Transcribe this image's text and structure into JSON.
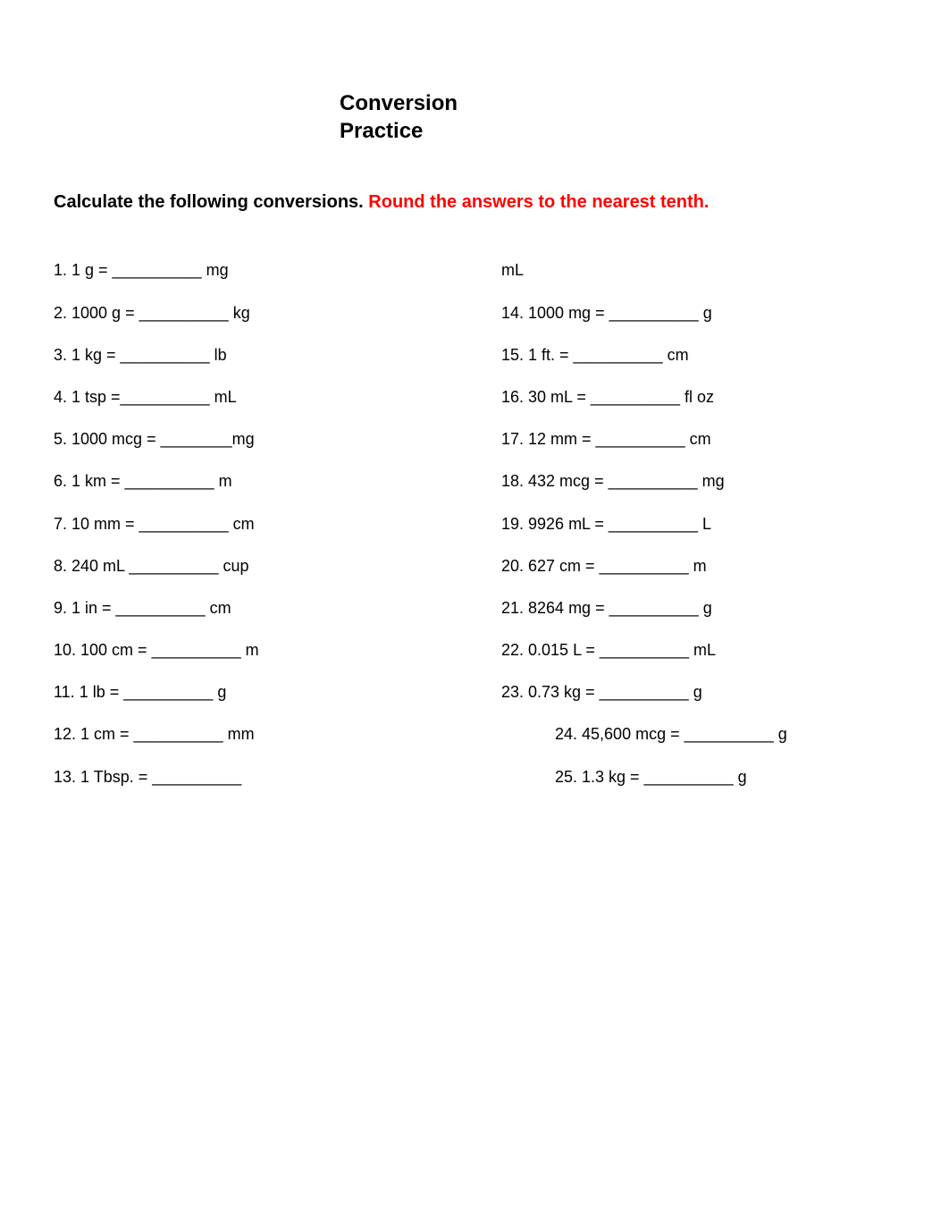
{
  "title": {
    "line1": "Conversion",
    "line2": "Practice"
  },
  "instructions": {
    "black": "Calculate the following conversions.",
    "red": "Round the answers to the nearest tenth."
  },
  "column1": [
    {
      "text": "1. 1 g = __________ mg"
    },
    {
      "text": "2. 1000 g = __________ kg"
    },
    {
      "text": "3. 1 kg = __________ lb"
    },
    {
      "text": "4. 1 tsp =__________ mL"
    },
    {
      "text": "5. 1000 mcg = ________mg"
    },
    {
      "text": "6. 1 km = __________ m"
    },
    {
      "text": "7. 10 mm = __________ cm"
    },
    {
      "text": "8. 240 mL __________ cup"
    },
    {
      "text": "9. 1 in = __________ cm"
    },
    {
      "text": "10. 100 cm = __________ m"
    },
    {
      "text": "11. 1 lb = __________ g"
    },
    {
      "text": "12. 1 cm = __________ mm"
    },
    {
      "text": "13. 1 Tbsp. = __________"
    }
  ],
  "column2": [
    {
      "text": "mL"
    },
    {
      "text": "14. 1000 mg = __________ g"
    },
    {
      "text": "15. 1 ft. = __________ cm"
    },
    {
      "text": "16. 30 mL = __________ fl oz"
    },
    {
      "text": "17. 12 mm = __________ cm"
    },
    {
      "text": "18. 432 mcg = __________ mg"
    },
    {
      "text": "19. 9926 mL = __________ L"
    },
    {
      "text": "20. 627 cm = __________ m"
    },
    {
      "text": "21. 8264 mg = __________ g"
    },
    {
      "text": "22. 0.015 L = __________ mL"
    },
    {
      "text": "23. 0.73 kg = __________ g"
    },
    {
      "text": "24. 45,600 mcg = __________ g",
      "indented": true
    },
    {
      "text": "25. 1.3 kg = __________ g",
      "indented": true
    }
  ],
  "colors": {
    "text": "#000000",
    "red": "#ff0000",
    "background": "#ffffff"
  }
}
